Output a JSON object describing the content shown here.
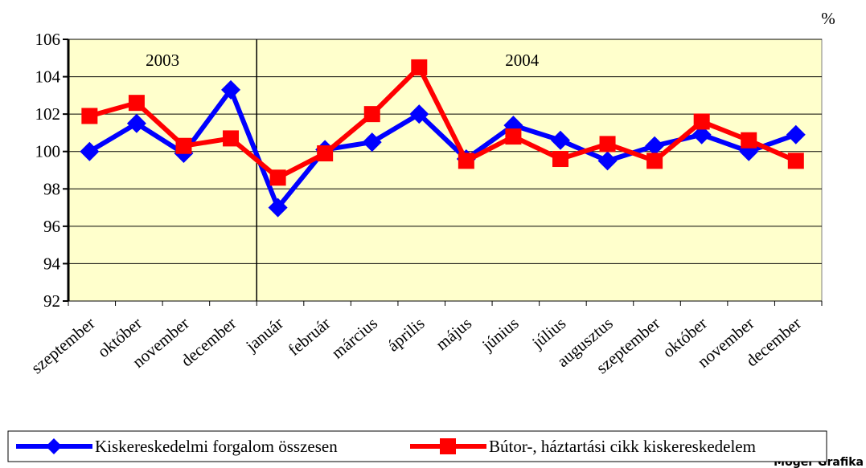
{
  "chart_data": {
    "type": "line",
    "unit_label": "%",
    "year_labels": [
      "2003",
      "2004"
    ],
    "categories": [
      "szeptember",
      "október",
      "november",
      "december",
      "január",
      "február",
      "március",
      "április",
      "május",
      "június",
      "július",
      "augusztus",
      "szeptember",
      "október",
      "november",
      "december"
    ],
    "series": [
      {
        "name": "Kiskereskedelmi forgalom összesen",
        "color": "#0000ff",
        "marker": "diamond",
        "values": [
          100,
          101.5,
          99.9,
          103.3,
          97,
          100.1,
          100.5,
          102,
          99.6,
          101.4,
          100.6,
          99.5,
          100.3,
          100.9,
          100,
          100.9
        ]
      },
      {
        "name": "Bútor-, háztartási cikk kiskereskedelem",
        "color": "#ff0000",
        "marker": "square",
        "values": [
          101.9,
          102.6,
          100.3,
          100.7,
          98.6,
          99.9,
          102,
          104.5,
          99.5,
          100.8,
          99.6,
          100.4,
          99.5,
          101.6,
          100.6,
          99.5
        ]
      }
    ],
    "ylim": [
      92,
      106
    ],
    "yticks": [
      92,
      94,
      96,
      98,
      100,
      102,
      104,
      106
    ],
    "grid": true,
    "plot_background": "#ffffcc",
    "watermark": "Móger Grafika"
  }
}
